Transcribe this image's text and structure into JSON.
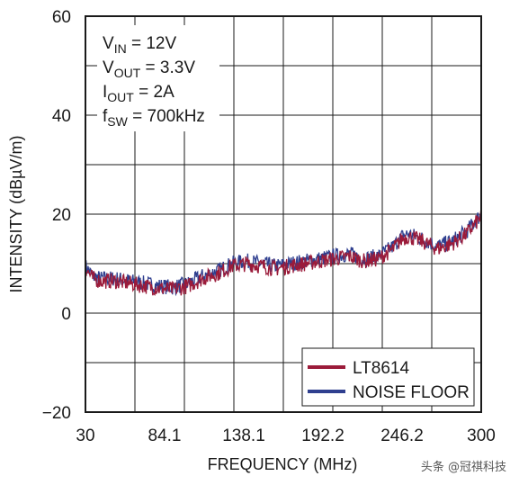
{
  "chart_data": {
    "type": "line",
    "xlabel": "FREQUENCY (MHz)",
    "ylabel": "INTENSITY (dBµV/m)",
    "xlim": [
      30,
      300
    ],
    "ylim": [
      -20,
      60
    ],
    "x_ticks": [
      "30",
      "84.1",
      "138.1",
      "192.2",
      "246.2",
      "300"
    ],
    "y_ticks": [
      "60",
      "40",
      "20",
      "0",
      "−20"
    ],
    "grid": true,
    "legend_position": "bottom-right",
    "conditions": [
      {
        "base": "V",
        "sub": "IN",
        "rest": " = 12V"
      },
      {
        "base": "V",
        "sub": "OUT",
        "rest": " = 3.3V"
      },
      {
        "base": "I",
        "sub": "OUT",
        "rest": " = 2A"
      },
      {
        "base": "f",
        "sub": "SW",
        "rest": " = 700kHz"
      }
    ],
    "series": [
      {
        "name": "LT8614",
        "color": "#9b1b3a",
        "x": [
          30,
          35,
          40,
          50,
          60,
          70,
          80,
          90,
          100,
          110,
          120,
          130,
          140,
          150,
          160,
          170,
          180,
          190,
          200,
          210,
          220,
          230,
          240,
          246,
          250,
          260,
          270,
          280,
          290,
          300
        ],
        "y": [
          9,
          7,
          6.5,
          6.5,
          6,
          5.5,
          5,
          4.8,
          5.5,
          7,
          8,
          9.5,
          10,
          9.5,
          9,
          9.5,
          10,
          10.5,
          11,
          11.5,
          10.5,
          11,
          13,
          15,
          15.5,
          14.5,
          13,
          14,
          16,
          19.5
        ]
      },
      {
        "name": "NOISE FLOOR",
        "color": "#2f3f8f",
        "x": [
          30,
          35,
          40,
          50,
          60,
          70,
          80,
          90,
          100,
          110,
          120,
          130,
          140,
          150,
          160,
          170,
          180,
          190,
          200,
          210,
          220,
          230,
          240,
          246,
          250,
          260,
          270,
          280,
          290,
          300
        ],
        "y": [
          9.5,
          7.5,
          7,
          7,
          6.5,
          6,
          5.5,
          5.2,
          6,
          7.5,
          8.5,
          10,
          10.5,
          10,
          9.5,
          10,
          10.5,
          11,
          11.5,
          12,
          11,
          11.5,
          13.5,
          15.5,
          16,
          15,
          13.5,
          14.5,
          16.5,
          20
        ]
      }
    ]
  },
  "watermark": "头条 @冠祺科技"
}
